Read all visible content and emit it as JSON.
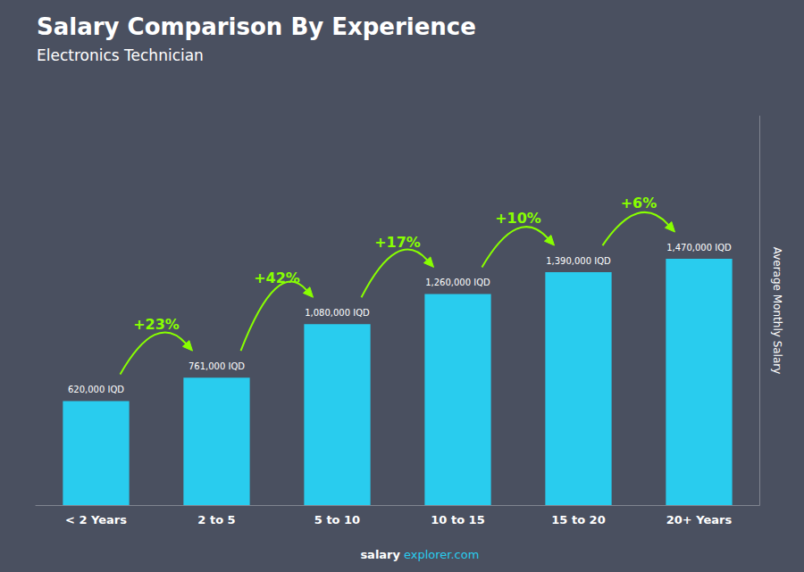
{
  "chart_data": {
    "type": "bar",
    "title": "Salary Comparison By Experience",
    "subtitle": "Electronics Technician",
    "categories": [
      "< 2 Years",
      "2 to 5",
      "5 to 10",
      "10 to 15",
      "15 to 20",
      "20+ Years"
    ],
    "values": [
      620000,
      761000,
      1080000,
      1260000,
      1390000,
      1470000
    ],
    "value_labels": [
      "620,000 IQD",
      "761,000 IQD",
      "1,080,000 IQD",
      "1,260,000 IQD",
      "1,390,000 IQD",
      "1,470,000 IQD"
    ],
    "data_labels": true,
    "color": "#29ccee",
    "ylabel": "Average Monthly Salary",
    "ylim": [
      0,
      2322600
    ],
    "yticks": [],
    "tick_labels": "x",
    "grid": false,
    "annotations": [
      {
        "text": "+23%",
        "from": "< 2 Years",
        "to": "2 to 5",
        "color": "#88ff00"
      },
      {
        "text": "+42%",
        "from": "2 to 5",
        "to": "5 to 10",
        "color": "#88ff00"
      },
      {
        "text": "+17%",
        "from": "5 to 10",
        "to": "10 to 15",
        "color": "#88ff00"
      },
      {
        "text": "+10%",
        "from": "10 to 15",
        "to": "15 to 20",
        "color": "#88ff00"
      },
      {
        "text": "+6%",
        "from": "15 to 20",
        "to": "20+ Years",
        "color": "#88ff00"
      }
    ],
    "footer": [
      {
        "text": "salary",
        "color": "#ffffff"
      },
      {
        "text": "explorer.com",
        "color": "#29ccee"
      }
    ]
  }
}
